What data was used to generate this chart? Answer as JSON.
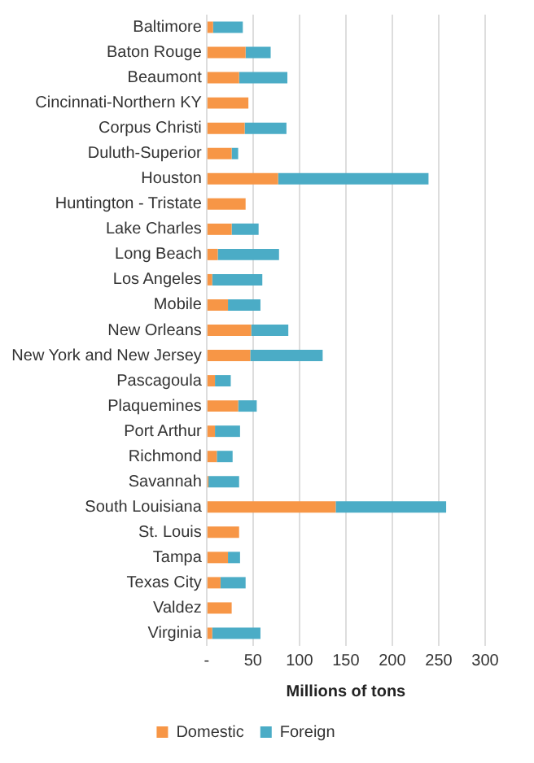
{
  "chart_data": {
    "type": "bar",
    "orientation": "horizontal",
    "stacked": true,
    "xlabel": "Millions of tons",
    "categories": [
      "Baltimore",
      "Baton Rouge",
      "Beaumont",
      "Cincinnati-Northern KY",
      "Corpus Christi",
      "Duluth-Superior",
      "Houston",
      "Huntington - Tristate",
      "Lake Charles",
      "Long Beach",
      "Los Angeles",
      "Mobile",
      "New Orleans",
      "New York and New Jersey",
      "Pascagoula",
      "Plaquemines",
      "Port Arthur",
      "Richmond",
      "Savannah",
      "South Louisiana",
      "St. Louis",
      "Tampa",
      "Texas City",
      "Valdez",
      "Virginia"
    ],
    "series": [
      {
        "name": "Domestic",
        "color": "#f79646",
        "values": [
          7,
          42,
          35,
          45,
          41,
          27,
          77,
          42,
          27,
          12,
          6,
          23,
          48,
          47,
          9,
          34,
          9,
          11,
          2,
          139,
          35,
          23,
          15,
          27,
          6
        ]
      },
      {
        "name": "Foreign",
        "color": "#4bacc6",
        "values": [
          32,
          27,
          52,
          0,
          45,
          7,
          162,
          0,
          29,
          66,
          54,
          35,
          40,
          78,
          17,
          20,
          27,
          17,
          33,
          119,
          0,
          13,
          27,
          0,
          52
        ]
      }
    ],
    "xlim": [
      0,
      300
    ],
    "xticks": [
      {
        "value": 0,
        "label": "-"
      },
      50,
      100,
      150,
      200,
      250,
      300
    ],
    "grid": "x",
    "legend": "bottom"
  }
}
